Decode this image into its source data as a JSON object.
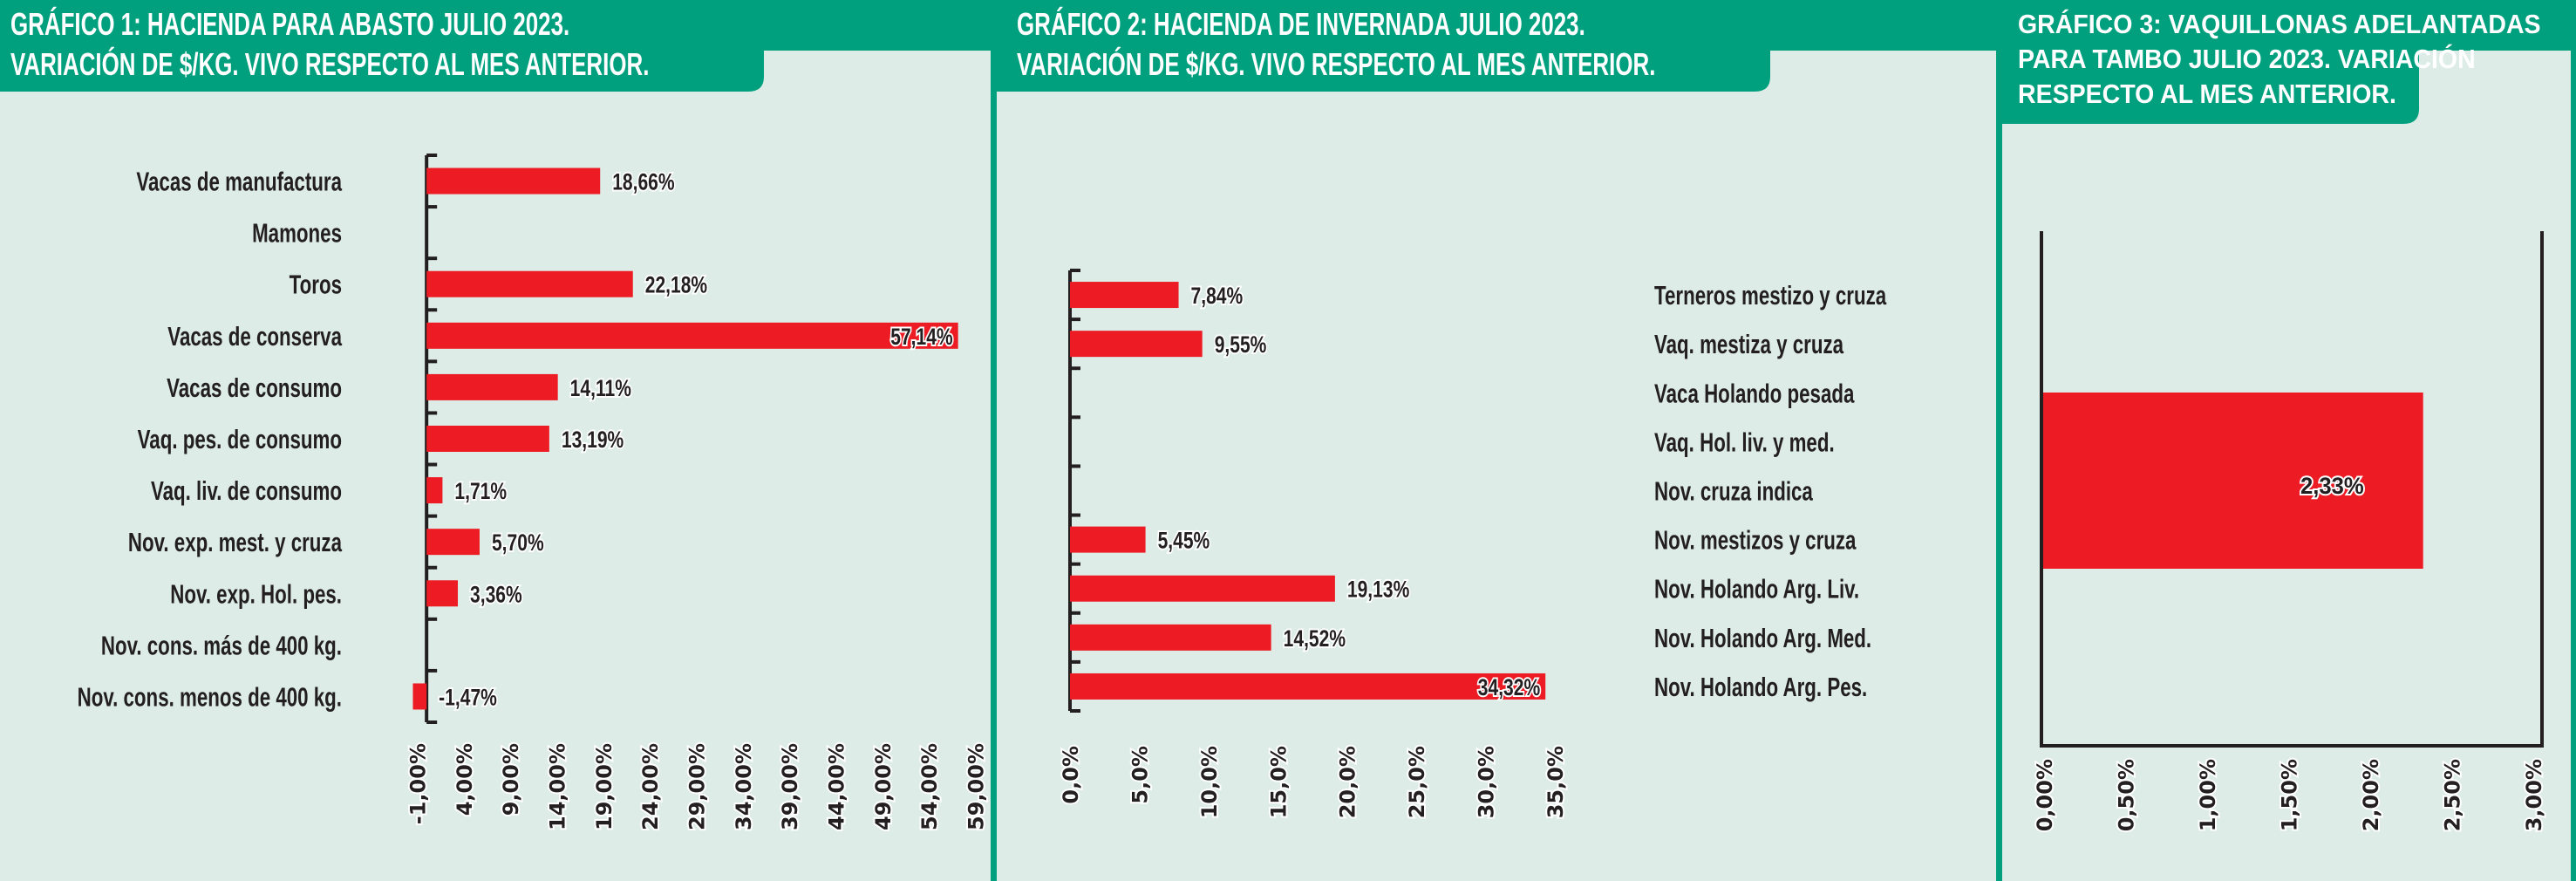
{
  "colors": {
    "background": "#ddece6",
    "header": "#00a07e",
    "bar": "#ed1c24",
    "axis": "#231f20"
  },
  "chart_data": [
    {
      "type": "bar",
      "orientation": "horizontal",
      "title_lines": [
        "GRÁFICO 1: HACIENDA PARA ABASTO JULIO 2023.",
        "VARIACIÓN DE $/KG. VIVO RESPECTO AL MES ANTERIOR."
      ],
      "categories": [
        "Vacas de manufactura",
        "Mamones",
        "Toros",
        "Vacas de conserva",
        "Vacas de consumo",
        "Vaq. pes. de consumo",
        "Vaq. liv. de consumo",
        "Nov. exp. mest. y cruza",
        "Nov. exp. Hol. pes.",
        "Nov. cons. más de 400 kg.",
        "Nov. cons. menos de 400 kg."
      ],
      "values": [
        18.66,
        null,
        22.18,
        57.14,
        14.11,
        13.19,
        1.71,
        5.7,
        3.36,
        null,
        -1.47
      ],
      "labels": [
        "18,66%",
        "",
        "22,18%",
        "57,14%",
        "14,11%",
        "13,19%",
        "1,71%",
        "5,70%",
        "3,36%",
        "",
        "-1,47%"
      ],
      "xlim": [
        -1,
        59
      ],
      "ticks": [
        -1,
        4,
        9,
        14,
        19,
        24,
        29,
        34,
        39,
        44,
        49,
        54,
        59
      ],
      "tick_labels": [
        "-1,00%",
        "4,00%",
        "9,00%",
        "14,00%",
        "19,00%",
        "24,00%",
        "29,00%",
        "34,00%",
        "39,00%",
        "44,00%",
        "49,00%",
        "54,00%",
        "59,00%"
      ],
      "grid": false
    },
    {
      "type": "bar",
      "orientation": "horizontal",
      "title_lines": [
        "GRÁFICO 2: HACIENDA DE INVERNADA JULIO 2023.",
        "VARIACIÓN DE $/KG. VIVO RESPECTO AL MES ANTERIOR."
      ],
      "categories": [
        "Terneros mestizo y cruza",
        "Vaq. mestiza y cruza",
        "Vaca Holando pesada",
        "Vaq. Hol. liv. y med.",
        "Nov. cruza indica",
        "Nov. mestizos y cruza",
        "Nov. Holando Arg. Liv.",
        "Nov. Holando Arg. Med.",
        "Nov. Holando Arg. Pes."
      ],
      "values": [
        7.84,
        9.55,
        null,
        null,
        null,
        5.45,
        19.13,
        14.52,
        34.32
      ],
      "labels": [
        "7,84%",
        "9,55%",
        "",
        "",
        "",
        "5,45%",
        "19,13%",
        "14,52%",
        "34,32%"
      ],
      "xlim": [
        0,
        35
      ],
      "ticks": [
        0,
        5,
        10,
        15,
        20,
        25,
        30,
        35
      ],
      "tick_labels": [
        "0,0%",
        "5,0%",
        "10,0%",
        "15,0%",
        "20,0%",
        "25,0%",
        "30,0%",
        "35,0%"
      ],
      "grid": false
    },
    {
      "type": "bar",
      "orientation": "horizontal",
      "title_lines": [
        "GRÁFICO 3: VAQUILLONAS ADELANTADAS",
        "PARA TAMBO JULIO 2023. VARIACIÓN",
        "RESPECTO AL MES ANTERIOR."
      ],
      "categories": [
        ""
      ],
      "values": [
        2.33
      ],
      "labels": [
        "2,33%"
      ],
      "xlim": [
        0,
        3
      ],
      "ticks": [
        0,
        0.5,
        1,
        1.5,
        2,
        2.5,
        3
      ],
      "tick_labels": [
        "0,00%",
        "0,50%",
        "1,00%",
        "1,50%",
        "2,00%",
        "2,50%",
        "3,00%"
      ],
      "grid": false
    }
  ]
}
